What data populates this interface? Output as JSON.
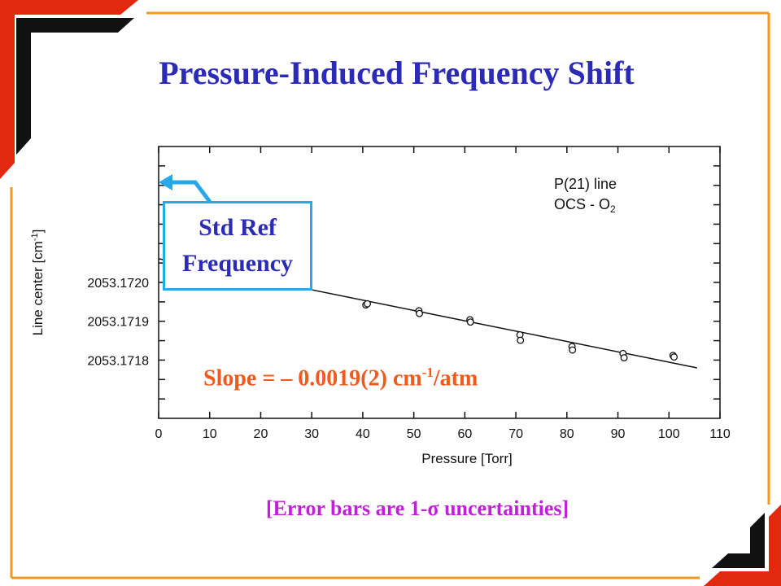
{
  "slide": {
    "title": "Pressure-Induced Frequency Shift",
    "ref_box_line1": "Std Ref",
    "ref_box_line2": "Frequency",
    "slope_prefix": "Slope = – 0.0019(2) cm",
    "slope_exp": "-1",
    "slope_suffix": "/atm",
    "error_prefix": "[Error bars are 1-",
    "error_symbol": "σ",
    "error_suffix": " uncertainties]"
  },
  "colors": {
    "title": "#2b2bb8",
    "frame_red": "#e2280f",
    "frame_orange": "#f39a1e",
    "frame_black": "#111111",
    "ref_box_border": "#29a8e8",
    "slope_text": "#f05a1e",
    "error_note": "#c020d8"
  },
  "chart_data": {
    "type": "scatter",
    "xlabel": "Pressure [Torr]",
    "ylabel": "Line center [cm",
    "ylabel_exp": "-1",
    "ylabel_close": "]",
    "xlim": [
      0,
      110
    ],
    "ylim": [
      2053.17165,
      2053.17235
    ],
    "x_ticks": [
      0,
      10,
      20,
      30,
      40,
      50,
      60,
      70,
      80,
      90,
      100,
      110
    ],
    "y_ticks": [
      2053.1718,
      2053.1719,
      2053.172
    ],
    "y_tick_labels": [
      "2053.1718",
      "2053.1719",
      "2053.1720"
    ],
    "legend": {
      "line1": "P(21) line",
      "line2_main": "OCS - O",
      "line2_sub": "2",
      "position": "top-right"
    },
    "grid": false,
    "points": [
      {
        "x": 40.6,
        "y": 2053.171942,
        "err": 1.2e-06
      },
      {
        "x": 40.9,
        "y": 2053.171945,
        "err": 1.2e-06
      },
      {
        "x": 51.0,
        "y": 2053.171927,
        "err": 1e-06
      },
      {
        "x": 51.1,
        "y": 2053.17192,
        "err": 1e-06
      },
      {
        "x": 61.0,
        "y": 2053.171904,
        "err": 1e-06
      },
      {
        "x": 61.1,
        "y": 2053.171898,
        "err": 1e-06
      },
      {
        "x": 70.8,
        "y": 2053.171865,
        "err": 1e-06
      },
      {
        "x": 70.9,
        "y": 2053.171851,
        "err": 1e-06
      },
      {
        "x": 81.0,
        "y": 2053.171835,
        "err": 1e-06
      },
      {
        "x": 81.1,
        "y": 2053.171826,
        "err": 1e-06
      },
      {
        "x": 91.0,
        "y": 2053.171817,
        "err": 1e-06
      },
      {
        "x": 91.2,
        "y": 2053.171806,
        "err": 1e-06
      },
      {
        "x": 100.8,
        "y": 2053.171812,
        "err": 1e-06
      },
      {
        "x": 101.0,
        "y": 2053.171808,
        "err": 1e-06
      }
    ],
    "fit_line": {
      "x": [
        0,
        105.5
      ],
      "y": [
        2053.172061,
        2053.17178
      ]
    }
  }
}
